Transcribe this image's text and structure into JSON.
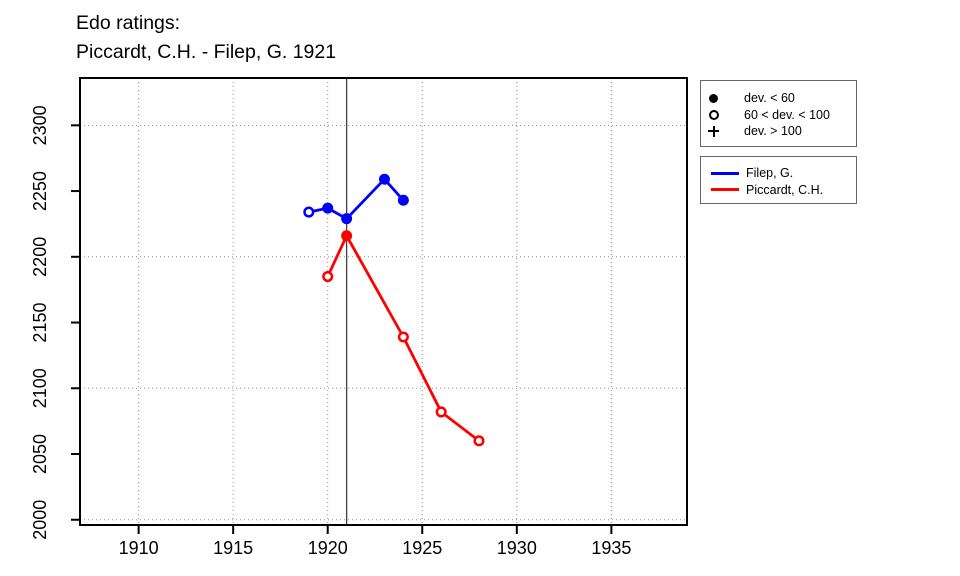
{
  "title": {
    "line1": "Edo ratings:",
    "line2": "Piccardt, C.H. - Filep, G. 1921"
  },
  "chart_data": {
    "type": "line",
    "title": "Edo ratings:",
    "subtitle": "Piccardt, C.H. - Filep, G. 1921",
    "xlabel": "",
    "ylabel": "",
    "x_range": [
      1906.9,
      1939.0
    ],
    "y_range": [
      1996,
      2336
    ],
    "x_ticks": [
      1910,
      1915,
      1920,
      1925,
      1930,
      1935
    ],
    "y_ticks": [
      2000,
      2050,
      2100,
      2150,
      2200,
      2250,
      2300
    ],
    "x_gridlines": [
      1910,
      1915,
      1920,
      1925,
      1930,
      1935
    ],
    "y_gridlines": [
      2000,
      2100,
      2200,
      2300
    ],
    "grid": true,
    "match_year_line": 1921,
    "legend_position": "top-right-outside",
    "marker_legend": [
      {
        "symbol": "filled-circle",
        "label": "dev. < 60"
      },
      {
        "symbol": "open-circle",
        "label": "60 < dev. < 100"
      },
      {
        "symbol": "plus",
        "label": "dev. > 100"
      }
    ],
    "series": [
      {
        "name": "Filep, G.",
        "color": "#0000ff",
        "points": [
          {
            "year": 1919,
            "rating": 2234,
            "marker": "open"
          },
          {
            "year": 1920,
            "rating": 2237,
            "marker": "filled"
          },
          {
            "year": 1921,
            "rating": 2229,
            "marker": "filled"
          },
          {
            "year": 1923,
            "rating": 2259,
            "marker": "filled"
          },
          {
            "year": 1924,
            "rating": 2243,
            "marker": "filled"
          }
        ]
      },
      {
        "name": "Piccardt, C.H.",
        "color": "#ff0000",
        "points": [
          {
            "year": 1920,
            "rating": 2185,
            "marker": "open"
          },
          {
            "year": 1921,
            "rating": 2216,
            "marker": "filled"
          },
          {
            "year": 1924,
            "rating": 2139,
            "marker": "open"
          },
          {
            "year": 1926,
            "rating": 2082,
            "marker": "open"
          },
          {
            "year": 1928,
            "rating": 2060,
            "marker": "open"
          }
        ]
      }
    ]
  }
}
